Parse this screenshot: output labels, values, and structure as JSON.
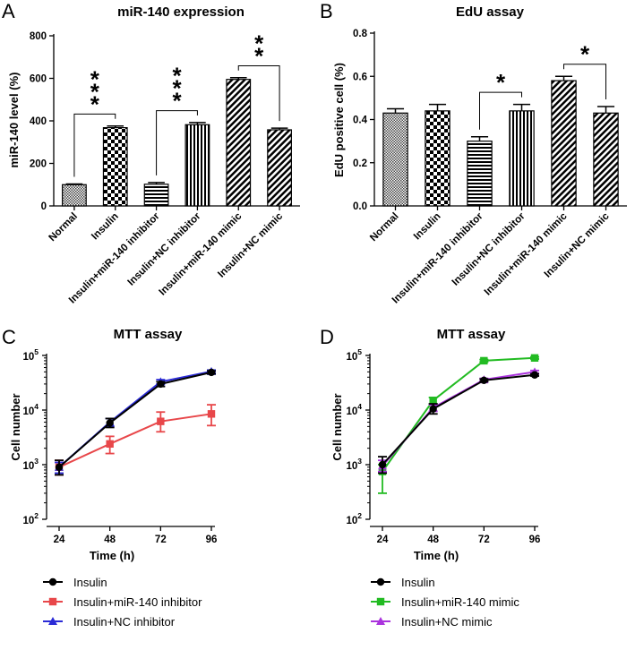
{
  "chart_data": [
    {
      "panel": "A",
      "type": "bar",
      "title": "miR-140 expression",
      "ylabel": "miR-140 level (%)",
      "xlabel": "",
      "ylim": [
        0,
        800
      ],
      "yticks": [
        0,
        200,
        400,
        600,
        800
      ],
      "categories": [
        "Normal",
        "Insulin",
        "Insulin+miR-140 inhibitor",
        "Insulin+NC inhibitor",
        "Insulin+miR-140 mimic",
        "Insulin+NC mimic"
      ],
      "values": [
        100,
        368,
        102,
        382,
        595,
        358
      ],
      "errors": [
        3,
        8,
        8,
        10,
        8,
        8
      ],
      "patterns": [
        "fine",
        "checker",
        "hstripe",
        "vstripe",
        "diag",
        "diag"
      ],
      "significance": [
        {
          "from": 0,
          "to": 1,
          "label": "***"
        },
        {
          "from": 2,
          "to": 3,
          "label": "***"
        },
        {
          "from": 4,
          "to": 5,
          "label": "**"
        }
      ]
    },
    {
      "panel": "B",
      "type": "bar",
      "title": "EdU assay",
      "ylabel": "EdU positive cell (%)",
      "xlabel": "",
      "ylim": [
        0,
        0.8
      ],
      "yticks": [
        "0.0",
        "0.2",
        "0.4",
        "0.6",
        "0.8"
      ],
      "categories": [
        "Normal",
        "Insulin",
        "Insulin+miR-140 inhibitor",
        "Insulin+NC inhibitor",
        "Insulin+miR-140 mimic",
        "Insulin+NC mimic"
      ],
      "values": [
        0.43,
        0.44,
        0.3,
        0.44,
        0.58,
        0.43
      ],
      "errors": [
        0.02,
        0.03,
        0.02,
        0.03,
        0.02,
        0.03
      ],
      "patterns": [
        "fine",
        "checker",
        "hstripe",
        "vstripe",
        "diag",
        "diag"
      ],
      "significance": [
        {
          "from": 2,
          "to": 3,
          "label": "*"
        },
        {
          "from": 4,
          "to": 5,
          "label": "*"
        }
      ]
    },
    {
      "panel": "C",
      "type": "line",
      "title": "MTT assay",
      "ylabel": "Cell number",
      "xlabel": "Time (h)",
      "yscale": "log",
      "ylim": [
        100,
        100000
      ],
      "yticks": [
        {
          "base": "10",
          "exp": "2"
        },
        {
          "base": "10",
          "exp": "3"
        },
        {
          "base": "10",
          "exp": "4"
        },
        {
          "base": "10",
          "exp": "5"
        }
      ],
      "x": [
        24,
        48,
        72,
        96
      ],
      "xticks": [
        "24",
        "48",
        "72",
        "96"
      ],
      "series": [
        {
          "name": "Insulin+miR-140 inhibitor",
          "color": "#e8474a",
          "marker": "square",
          "values": [
            900,
            2400,
            6200,
            8500
          ],
          "err_hi": [
            1200,
            3300,
            9200,
            12500
          ],
          "err_lo": [
            650,
            1600,
            4000,
            5200
          ]
        },
        {
          "name": "Insulin+NC inhibitor",
          "color": "#2b2bd6",
          "marker": "triangle",
          "values": [
            900,
            6000,
            33000,
            51000
          ],
          "err_hi": [
            1100,
            7000,
            36000,
            54000
          ],
          "err_lo": [
            700,
            5000,
            30000,
            48000
          ]
        },
        {
          "name": "Insulin",
          "color": "#000000",
          "marker": "circle",
          "values": [
            900,
            5800,
            30000,
            49000
          ],
          "err_hi": [
            1200,
            7000,
            33000,
            52000
          ],
          "err_lo": [
            650,
            4800,
            27000,
            46000
          ]
        }
      ],
      "legend": [
        "Insulin",
        "Insulin+miR-140 inhibitor",
        "Insulin+NC inhibitor"
      ],
      "legend_colors": [
        "#000000",
        "#e8474a",
        "#2b2bd6"
      ],
      "legend_markers": [
        "circle",
        "square",
        "triangle"
      ],
      "legend_position": "bottom"
    },
    {
      "panel": "D",
      "type": "line",
      "title": "MTT assay",
      "ylabel": "Cell number",
      "xlabel": "Time (h)",
      "yscale": "log",
      "ylim": [
        100,
        100000
      ],
      "yticks": [
        {
          "base": "10",
          "exp": "2"
        },
        {
          "base": "10",
          "exp": "3"
        },
        {
          "base": "10",
          "exp": "4"
        },
        {
          "base": "10",
          "exp": "5"
        }
      ],
      "x": [
        24,
        48,
        72,
        96
      ],
      "xticks": [
        "24",
        "48",
        "72",
        "96"
      ],
      "series": [
        {
          "name": "Insulin+miR-140 mimic",
          "color": "#22bb22",
          "marker": "square",
          "values": [
            750,
            15000,
            80000,
            90000
          ],
          "err_hi": [
            1000,
            17000,
            84000,
            94000
          ],
          "err_lo": [
            300,
            13000,
            76000,
            86000
          ]
        },
        {
          "name": "Insulin+NC mimic",
          "color": "#aa33dd",
          "marker": "triangle",
          "values": [
            950,
            11000,
            36000,
            50000
          ],
          "err_hi": [
            1200,
            12500,
            38000,
            53000
          ],
          "err_lo": [
            750,
            9500,
            34000,
            47000
          ]
        },
        {
          "name": "Insulin",
          "color": "#000000",
          "marker": "circle",
          "values": [
            1000,
            10500,
            35000,
            44000
          ],
          "err_hi": [
            1400,
            13000,
            37000,
            46000
          ],
          "err_lo": [
            700,
            8500,
            33000,
            42000
          ]
        }
      ],
      "legend": [
        "Insulin",
        "Insulin+miR-140 mimic",
        "Insulin+NC mimic"
      ],
      "legend_colors": [
        "#000000",
        "#22bb22",
        "#aa33dd"
      ],
      "legend_markers": [
        "circle",
        "square",
        "triangle"
      ],
      "legend_position": "bottom"
    }
  ]
}
